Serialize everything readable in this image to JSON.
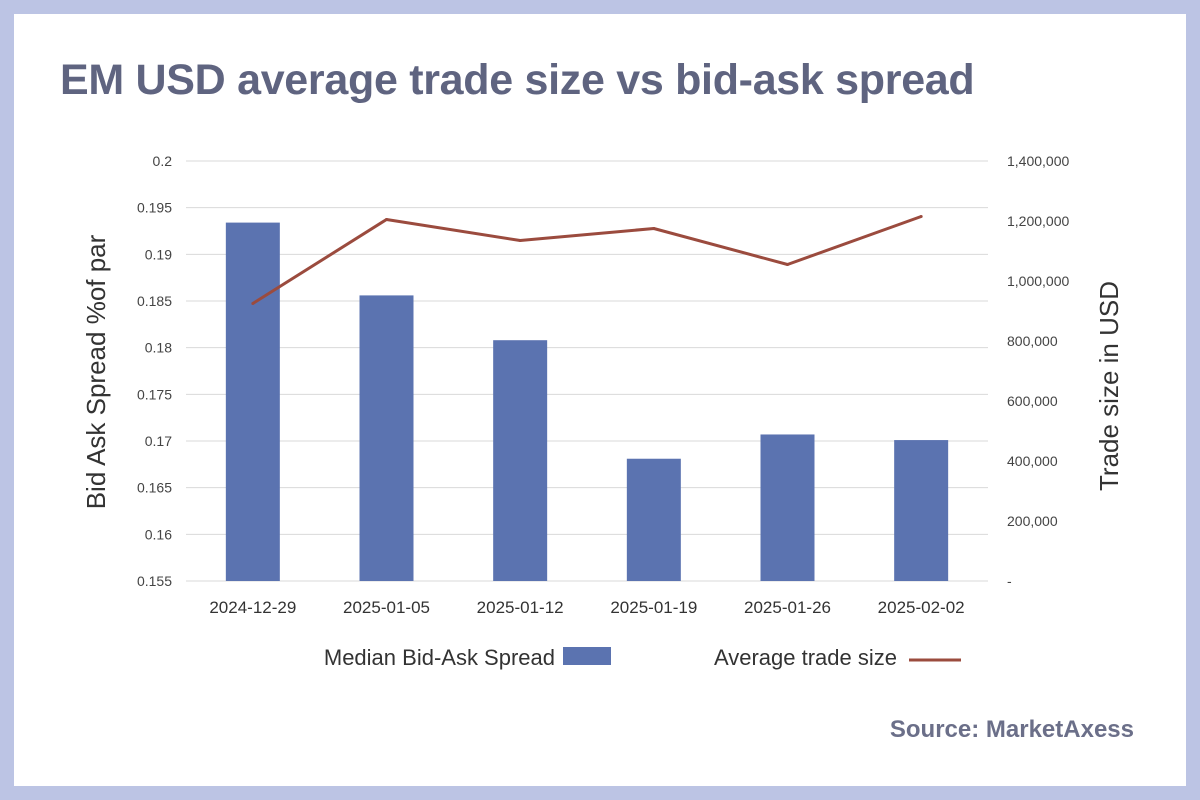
{
  "title": "EM USD average trade size vs bid-ask spread",
  "source": "Source: MarketAxess",
  "colors": {
    "bar": "#5b73b0",
    "line": "#9b4b3e",
    "grid": "#d9d9d9",
    "frame": "#bcc4e4",
    "title": "#5f6480"
  },
  "chart_data": {
    "type": "bar",
    "title": "EM USD average trade size vs bid-ask spread",
    "categories": [
      "2024-12-29",
      "2025-01-05",
      "2025-01-12",
      "2025-01-19",
      "2025-01-26",
      "2025-02-02"
    ],
    "ylabel": "Bid Ask Spread %of par",
    "y2label": "Trade size in USD",
    "ylim": [
      0.155,
      0.2
    ],
    "y2lim": [
      0,
      1400000
    ],
    "yticks": [
      "0.2",
      "0.195",
      "0.19",
      "0.185",
      "0.18",
      "0.175",
      "0.17",
      "0.165",
      "0.16",
      "0.155"
    ],
    "y2ticks": [
      "1,400,000",
      "1,200,000",
      "1,000,000",
      "800,000",
      "600,000",
      "400,000",
      "200,000",
      "-"
    ],
    "grid": true,
    "legend_position": "bottom",
    "series": [
      {
        "name": "Median Bid-Ask Spread",
        "type": "bar",
        "axis": "left",
        "values": [
          0.1934,
          0.1856,
          0.1808,
          0.1681,
          0.1707,
          0.1701
        ]
      },
      {
        "name": "Average trade size",
        "type": "line",
        "axis": "right",
        "values": [
          925000,
          1205000,
          1135000,
          1175000,
          1055000,
          1215000
        ]
      }
    ]
  }
}
